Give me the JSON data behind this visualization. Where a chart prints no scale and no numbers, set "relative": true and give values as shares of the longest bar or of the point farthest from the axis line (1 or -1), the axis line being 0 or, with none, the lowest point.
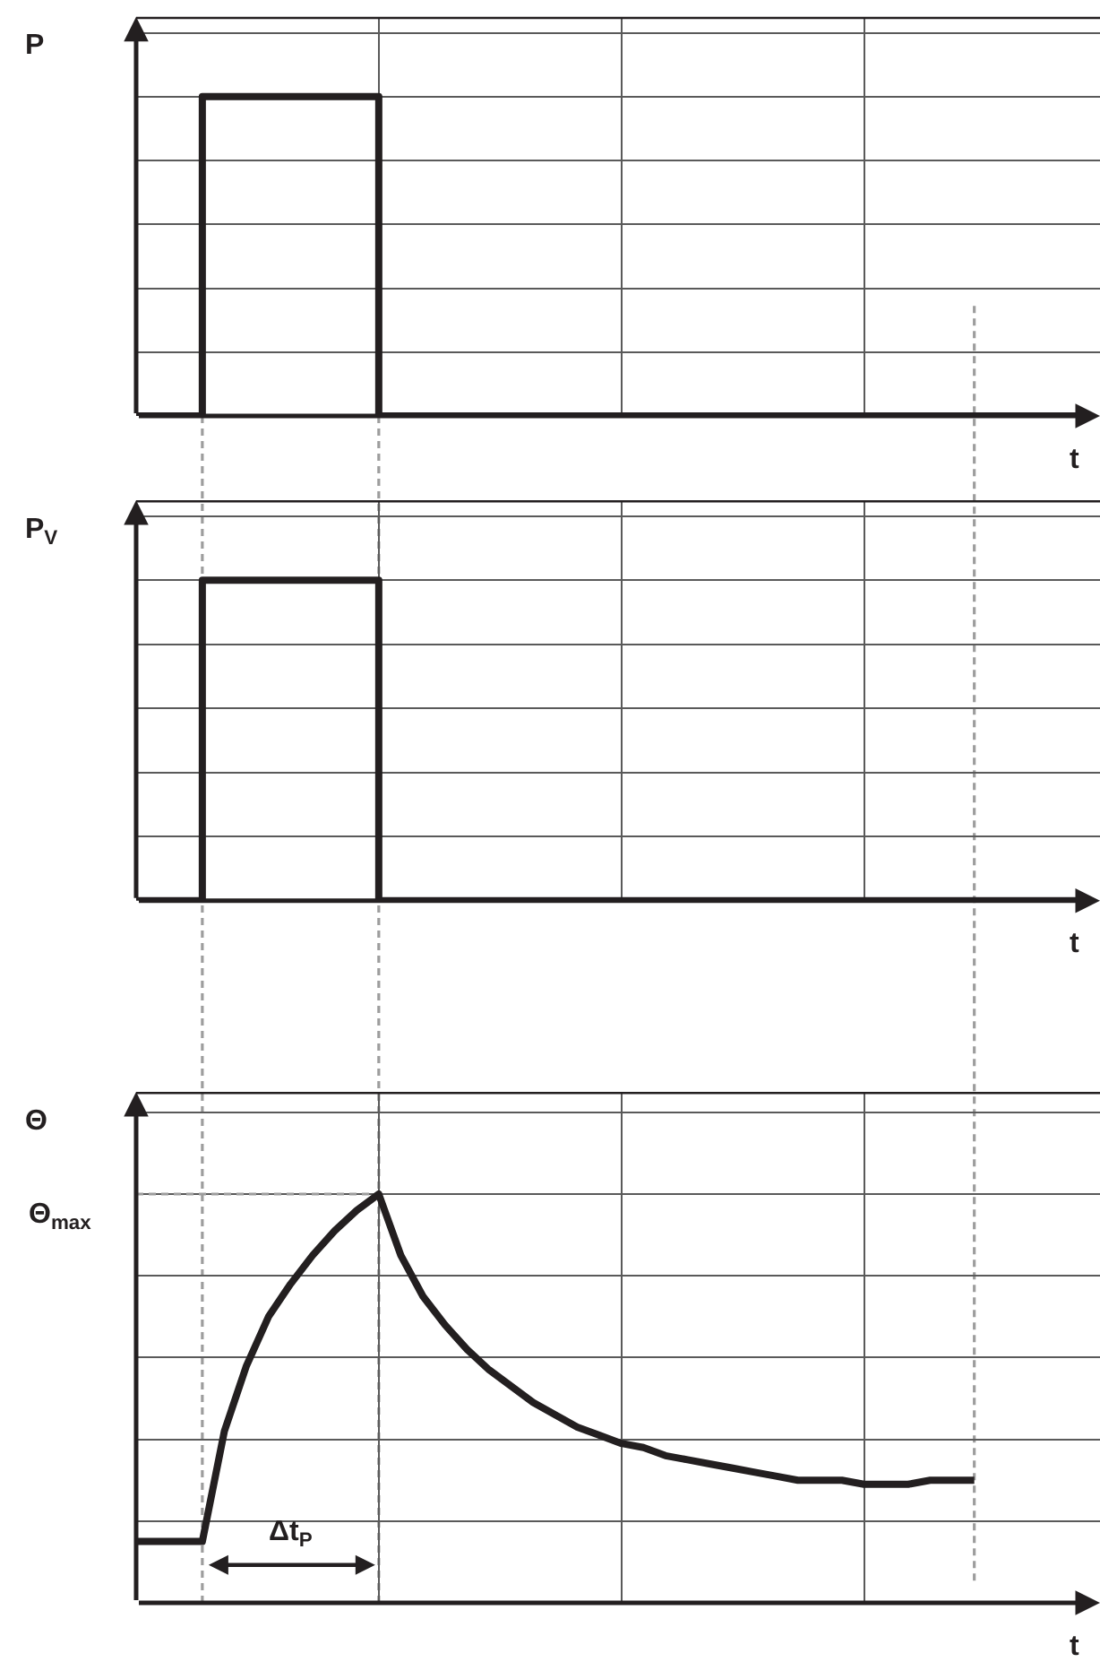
{
  "chart_data": [
    {
      "type": "step",
      "ylabel": "P",
      "xlabel": "t",
      "relative": true,
      "grid": true,
      "categories": [
        null,
        null,
        null,
        null,
        null,
        null,
        null,
        null,
        null,
        null,
        null,
        null,
        null,
        null,
        null,
        null,
        null,
        null,
        null,
        null,
        null,
        null,
        null,
        null,
        null,
        null,
        null,
        null,
        null,
        null,
        null,
        null,
        null,
        null,
        null,
        null,
        null,
        null,
        null,
        null,
        null,
        null,
        null,
        null
      ],
      "series": [
        {
          "color": "#231f20",
          "values": [
            0,
            0,
            0,
            1,
            1,
            1,
            1,
            1,
            1,
            1,
            1,
            0,
            0,
            0,
            0,
            0,
            0,
            0,
            0,
            0,
            0,
            0,
            0,
            0,
            0,
            0,
            0,
            0,
            0,
            0,
            0,
            0,
            0,
            0,
            0,
            0,
            0,
            0,
            0,
            0,
            0,
            0,
            0,
            0
          ]
        }
      ]
    },
    {
      "type": "step",
      "ylabel": "P$_{V}$",
      "xlabel": "t",
      "relative": true,
      "grid": true,
      "categories": [
        null,
        null,
        null,
        null,
        null,
        null,
        null,
        null,
        null,
        null,
        null,
        null,
        null,
        null,
        null,
        null,
        null,
        null,
        null,
        null,
        null,
        null,
        null,
        null,
        null,
        null,
        null,
        null,
        null,
        null,
        null,
        null,
        null,
        null,
        null,
        null,
        null,
        null,
        null,
        null,
        null,
        null,
        null,
        null
      ],
      "series": [
        {
          "color": "#231f20",
          "values": [
            0,
            0,
            0,
            1,
            1,
            1,
            1,
            1,
            1,
            1,
            1,
            0,
            0,
            0,
            0,
            0,
            0,
            0,
            0,
            0,
            0,
            0,
            0,
            0,
            0,
            0,
            0,
            0,
            0,
            0,
            0,
            0,
            0,
            0,
            0,
            0,
            0,
            0,
            0,
            0,
            0,
            0,
            0,
            0
          ]
        }
      ]
    },
    {
      "type": "line",
      "ylabel": "Θ",
      "xlabel": "t",
      "relative": true,
      "grid": true,
      "categories": [
        null,
        null,
        null,
        null,
        null,
        null,
        null,
        null,
        null,
        null,
        null,
        null,
        null,
        null,
        null,
        null,
        null,
        null,
        null,
        null,
        null,
        null,
        null,
        null,
        null,
        null,
        null,
        null,
        null,
        null,
        null,
        null,
        null,
        null,
        null,
        null,
        null,
        null,
        null
      ],
      "series": [
        {
          "color": "#231f20",
          "values": [
            0.15,
            0.15,
            0.15,
            0.15,
            0.42,
            0.58,
            0.7,
            0.78,
            0.85,
            0.91,
            0.96,
            1,
            0.85,
            0.75,
            0.68,
            0.62,
            0.57,
            0.53,
            0.49,
            0.46,
            0.43,
            0.41,
            0.39,
            0.38,
            0.36,
            0.35,
            0.34,
            0.33,
            0.32,
            0.31,
            0.3,
            0.3,
            0.3,
            0.29,
            0.29,
            0.29,
            0.3,
            0.3,
            0.3
          ]
        }
      ],
      "ref_lines": [
        {
          "axis": "y",
          "value": 1,
          "label": "Θ$_{max}$",
          "color": "#9d9d9d",
          "line_style": "dashed"
        }
      ],
      "annotations": [
        "Δt$_{P}$"
      ]
    }
  ]
}
